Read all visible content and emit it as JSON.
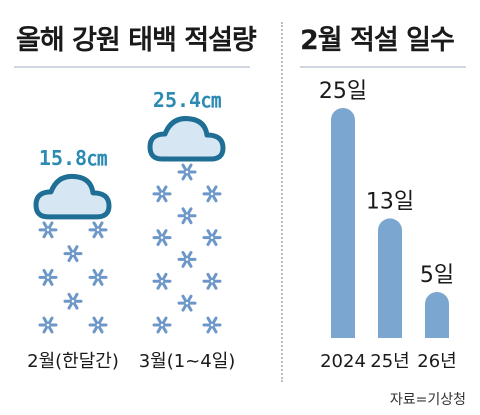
{
  "left_title": "올해 강원 태백 적설량",
  "right_title": "2월 적설 일수",
  "source": "자료=기상청",
  "colors": {
    "accent": "#2c8ab3",
    "bar": "#7aa6cf",
    "snow": "#6c97c8",
    "cloud_fill": "#d6e6f2",
    "cloud_stroke": "#1f6e96"
  },
  "chart_data": [
    {
      "type": "pictogram",
      "title": "올해 강원 태백 적설량",
      "categories": [
        "2월(한달간)",
        "3월(1~4일)"
      ],
      "values": [
        15.8,
        25.4
      ],
      "value_labels": [
        "15.8㎝",
        "25.4㎝"
      ],
      "unit": "㎝"
    },
    {
      "type": "bar",
      "title": "2월 적설 일수",
      "categories": [
        "2024",
        "25년",
        "26년"
      ],
      "values": [
        25,
        13,
        5
      ],
      "value_labels": [
        "25일",
        "13일",
        "5일"
      ],
      "unit": "일",
      "ylim": [
        0,
        25
      ]
    }
  ]
}
